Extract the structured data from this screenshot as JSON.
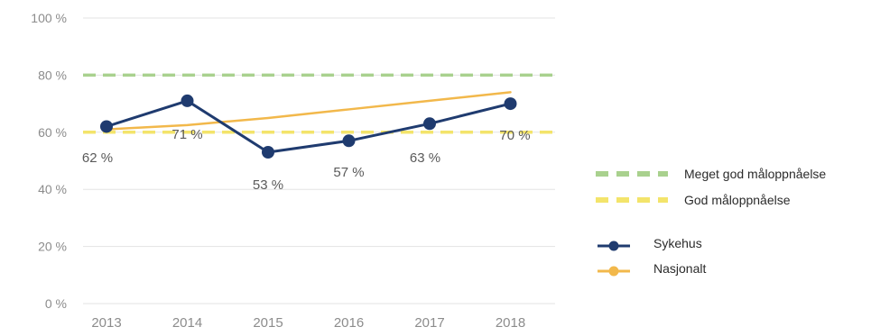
{
  "chart_data": {
    "type": "line",
    "categories": [
      "2013",
      "2014",
      "2015",
      "2016",
      "2017",
      "2018"
    ],
    "ylim": [
      0,
      100
    ],
    "yticks": [
      0,
      20,
      40,
      60,
      80,
      100
    ],
    "ytick_labels": [
      "0 %",
      "20 %",
      "40 %",
      "60 %",
      "80 %",
      "100 %"
    ],
    "grid": true,
    "legend_position": "right",
    "series": [
      {
        "name": "Sykehus",
        "values": [
          62,
          71,
          53,
          57,
          63,
          70
        ],
        "data_labels": [
          "62 %",
          "71 %",
          "53 %",
          "57 %",
          "63 %",
          "70 %"
        ],
        "color": "#1f3b6f",
        "markers": true
      },
      {
        "name": "Nasjonalt",
        "values": [
          61,
          62.5,
          65,
          68,
          71,
          74
        ],
        "color": "#f2b84b",
        "markers": false
      }
    ],
    "reference_lines": [
      {
        "name": "Meget god måloppnåelse",
        "value": 80,
        "color": "#a9d18e",
        "style": "dashed"
      },
      {
        "name": "God måloppnåelse",
        "value": 60,
        "color": "#f3e46b",
        "style": "dashed"
      }
    ],
    "legend": [
      {
        "label": "Meget god måloppnåelse",
        "kind": "dashed",
        "color": "#a9d18e"
      },
      {
        "label": "God måloppnåelse",
        "kind": "dashed",
        "color": "#f3e46b"
      },
      {
        "label": "Sykehus",
        "kind": "line-marker",
        "color": "#1f3b6f"
      },
      {
        "label": "Nasjonalt",
        "kind": "line-marker",
        "color": "#f2b84b"
      }
    ]
  }
}
